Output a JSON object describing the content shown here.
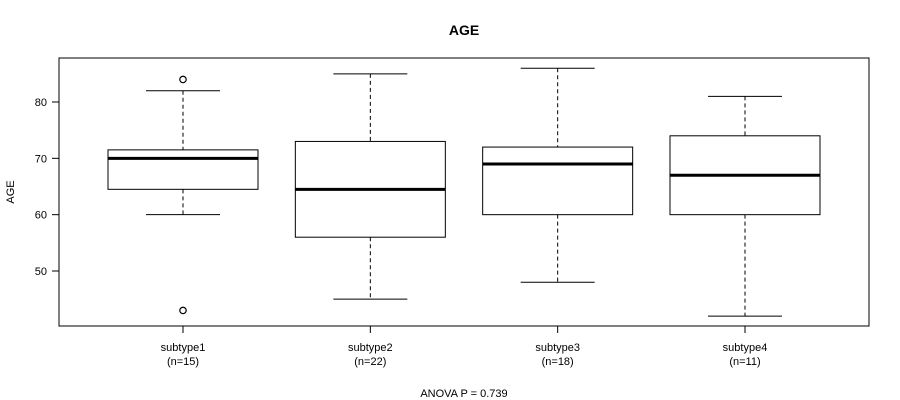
{
  "chart_data": {
    "type": "boxplot",
    "title": "AGE",
    "ylabel": "AGE",
    "xlabel": "",
    "footnote": "ANOVA P = 0.739",
    "ylim": [
      40,
      88
    ],
    "yticks": [
      "50",
      "60",
      "70",
      "80"
    ],
    "groups": [
      {
        "name": "subtype1",
        "n_label": "(n=15)",
        "whisker_low": 60,
        "q1": 64.5,
        "median": 70,
        "q3": 71.5,
        "whisker_high": 82,
        "outliers": [
          84,
          43
        ]
      },
      {
        "name": "subtype2",
        "n_label": "(n=22)",
        "whisker_low": 45,
        "q1": 56,
        "median": 64.5,
        "q3": 73,
        "whisker_high": 85,
        "outliers": []
      },
      {
        "name": "subtype3",
        "n_label": "(n=18)",
        "whisker_low": 48,
        "q1": 60,
        "median": 69,
        "q3": 72,
        "whisker_high": 86,
        "outliers": []
      },
      {
        "name": "subtype4",
        "n_label": "(n=11)",
        "whisker_low": 42,
        "q1": 60,
        "median": 67,
        "q3": 74,
        "whisker_high": 81,
        "outliers": []
      }
    ]
  }
}
